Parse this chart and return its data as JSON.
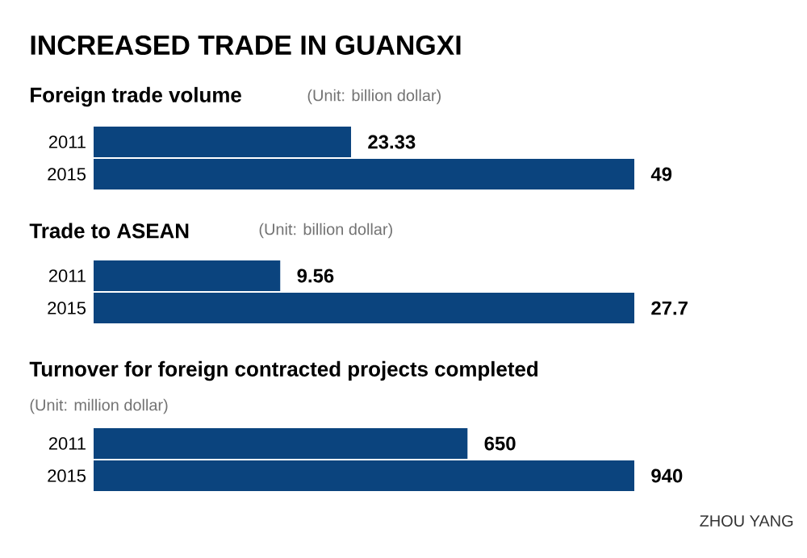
{
  "chart_data": [
    {
      "type": "bar",
      "orientation": "horizontal",
      "title": "Foreign trade volume",
      "subtitle": "(Unit: billion dollar)",
      "categories": [
        "2011",
        "2015"
      ],
      "values": [
        23.33,
        49
      ],
      "color": "#0b447e",
      "data_labels": true,
      "annotations": [
        "INCREASED TRADE IN GUANGXI"
      ]
    },
    {
      "type": "bar",
      "orientation": "horizontal",
      "title": "Trade to ASEAN",
      "subtitle": "(Unit: billion dollar)",
      "categories": [
        "2011",
        "2015"
      ],
      "values": [
        9.56,
        27.7
      ],
      "color": "#0b447e",
      "data_labels": true
    },
    {
      "type": "bar",
      "orientation": "horizontal",
      "title": "Turnover for foreign contracted projects completed",
      "subtitle": "(Unit: million dollar)",
      "categories": [
        "2011",
        "2015"
      ],
      "values": [
        650,
        940
      ],
      "color": "#0b447e",
      "data_labels": true,
      "annotations": [
        "ZHOU YANG"
      ]
    }
  ]
}
